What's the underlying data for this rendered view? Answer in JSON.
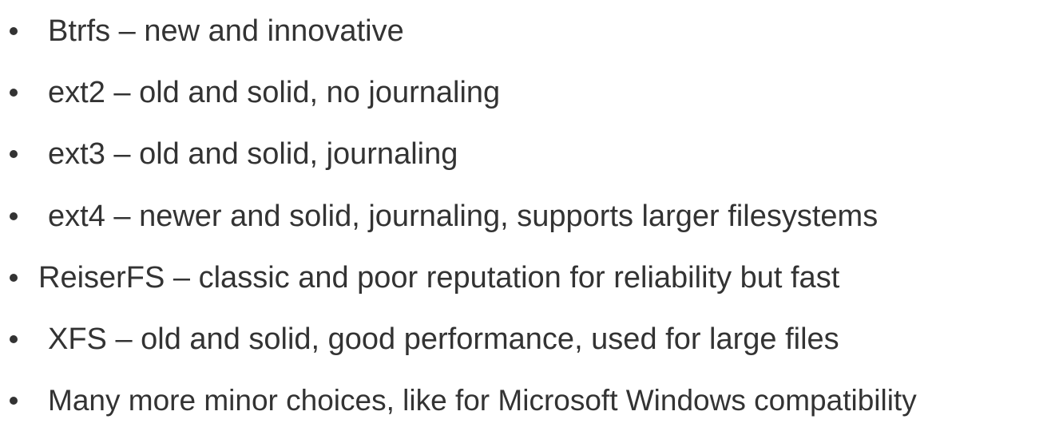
{
  "bullets": [
    {
      "text": "Btrfs – new and innovative"
    },
    {
      "text": "ext2 – old and solid, no journaling"
    },
    {
      "text": "ext3 – old and solid, journaling"
    },
    {
      "text": "ext4 – newer and solid, journaling, supports larger filesystems"
    },
    {
      "text": "ReiserFS – classic and poor reputation for reliability but fast"
    },
    {
      "text": "XFS – old and solid, good performance, used for large files"
    },
    {
      "text": "Many more minor choices, like for Microsoft Windows compatibility"
    }
  ],
  "colors": {
    "text": "#333333",
    "background": "#ffffff"
  }
}
